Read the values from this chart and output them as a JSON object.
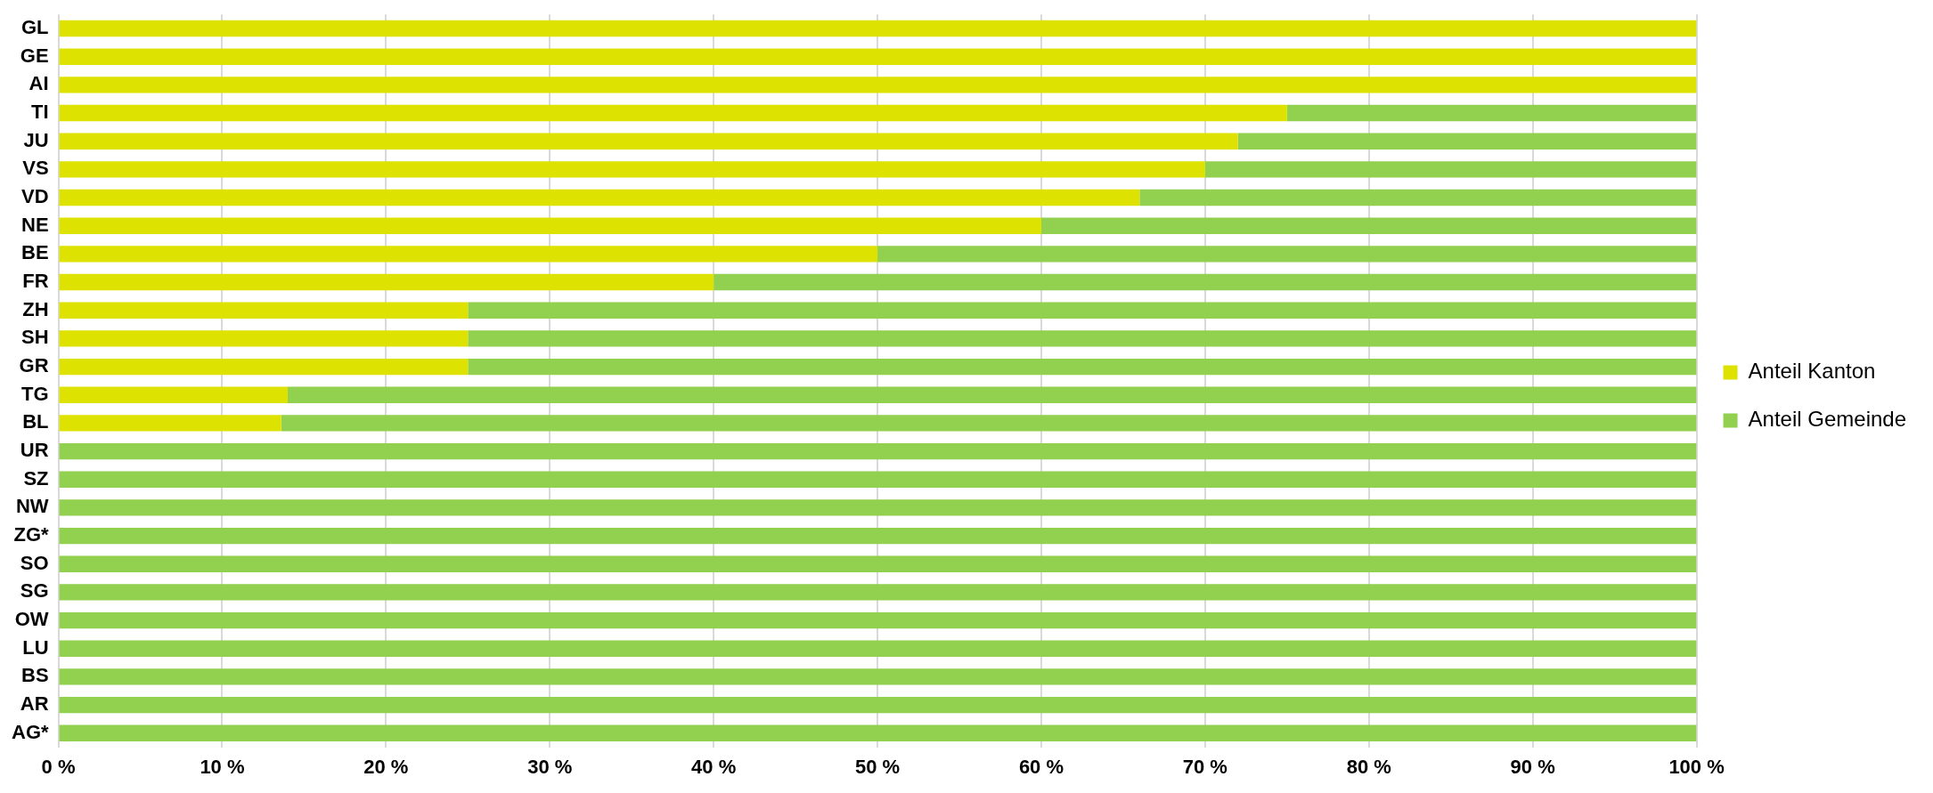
{
  "chart_data": {
    "type": "bar",
    "orientation": "horizontal",
    "stacked": true,
    "categories": [
      "GL",
      "GE",
      "AI",
      "TI",
      "JU",
      "VS",
      "VD",
      "NE",
      "BE",
      "FR",
      "ZH",
      "SH",
      "GR",
      "TG",
      "BL",
      "UR",
      "SZ",
      "NW",
      "ZG*",
      "SO",
      "SG",
      "OW",
      "LU",
      "BS",
      "AR",
      "AG*"
    ],
    "series": [
      {
        "name": "Anteil Kanton",
        "color": "#dde200",
        "values": [
          100,
          100,
          100,
          75,
          72,
          70,
          66,
          60,
          50,
          40,
          25,
          25,
          25,
          14,
          13.6,
          0,
          0,
          0,
          0,
          0,
          0,
          0,
          0,
          0,
          0,
          0
        ]
      },
      {
        "name": "Anteil Gemeinde",
        "color": "#92d050",
        "values": [
          0,
          0,
          0,
          25,
          28,
          30,
          34,
          40,
          50,
          60,
          75,
          75,
          75,
          86,
          86.4,
          100,
          100,
          100,
          100,
          100,
          100,
          100,
          100,
          100,
          100,
          100
        ]
      }
    ],
    "xlim": [
      0,
      100
    ],
    "xticks": [
      {
        "value": 0,
        "label": "0 %"
      },
      {
        "value": 10,
        "label": "10 %"
      },
      {
        "value": 20,
        "label": "20 %"
      },
      {
        "value": 30,
        "label": "30 %"
      },
      {
        "value": 40,
        "label": "40 %"
      },
      {
        "value": 50,
        "label": "50 %"
      },
      {
        "value": 60,
        "label": "60 %"
      },
      {
        "value": 70,
        "label": "70 %"
      },
      {
        "value": 80,
        "label": "80 %"
      },
      {
        "value": 90,
        "label": "90 %"
      },
      {
        "value": 100,
        "label": "100 %"
      }
    ],
    "grid": "x",
    "legend": "right"
  }
}
